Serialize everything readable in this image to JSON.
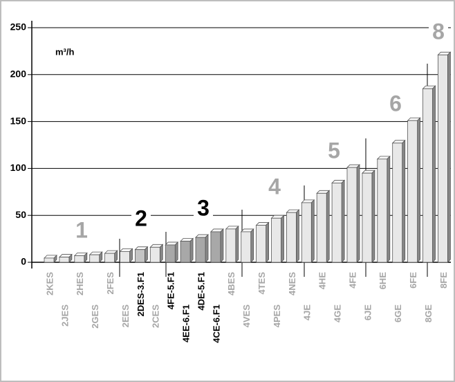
{
  "chart_data": {
    "type": "bar",
    "unit_label": "m³/h",
    "categories": [
      "2KES",
      "2JES",
      "2HES",
      "2GES",
      "2FES",
      "2EES",
      "2DES-3.F1",
      "2CES",
      "4FE-5.F1",
      "4EE-6.F1",
      "4DE-5.F1",
      "4CE-6.F1",
      "4BES",
      "4VES",
      "4TES",
      "4PES",
      "4NES",
      "4JE",
      "4HE",
      "4GE",
      "4FE",
      "6JE",
      "6HE",
      "6GE",
      "6FE",
      "8GE",
      "8FE"
    ],
    "values": [
      4.5,
      5.5,
      7,
      8,
      9.5,
      11.5,
      13.5,
      16,
      18.5,
      22.5,
      26.5,
      32.5,
      35.5,
      32.5,
      39.5,
      47,
      53,
      63.5,
      73.5,
      84.5,
      101,
      95,
      110,
      127,
      151,
      185,
      221
    ],
    "colors": [
      "#e8e8e8",
      "#e8e8e8",
      "#e8e8e8",
      "#e8e8e8",
      "#e8e8e8",
      "#e8e8e8",
      "#c4c4c4",
      "#e8e8e8",
      "#a8a8a8",
      "#a8a8a8",
      "#a8a8a8",
      "#a8a8a8",
      "#e8e8e8",
      "#e8e8e8",
      "#e8e8e8",
      "#e8e8e8",
      "#e8e8e8",
      "#e8e8e8",
      "#e8e8e8",
      "#e8e8e8",
      "#e8e8e8",
      "#e8e8e8",
      "#e8e8e8",
      "#e8e8e8",
      "#e8e8e8",
      "#e8e8e8",
      "#e8e8e8"
    ],
    "label_colors": [
      "#a6a6a6",
      "#a6a6a6",
      "#a6a6a6",
      "#a6a6a6",
      "#a6a6a6",
      "#a6a6a6",
      "#000000",
      "#a6a6a6",
      "#000000",
      "#000000",
      "#000000",
      "#000000",
      "#a6a6a6",
      "#a6a6a6",
      "#a6a6a6",
      "#a6a6a6",
      "#a6a6a6",
      "#a6a6a6",
      "#a6a6a6",
      "#a6a6a6",
      "#a6a6a6",
      "#a6a6a6",
      "#a6a6a6",
      "#a6a6a6",
      "#a6a6a6",
      "#a6a6a6",
      "#a6a6a6"
    ],
    "groups": [
      {
        "text": "1",
        "color": "#a6a6a6"
      },
      {
        "text": "2",
        "color": "#000000"
      },
      {
        "text": "3",
        "color": "#000000"
      },
      {
        "text": "4",
        "color": "#a6a6a6"
      },
      {
        "text": "5",
        "color": "#a6a6a6"
      },
      {
        "text": "6",
        "color": "#a6a6a6"
      },
      {
        "text": "8",
        "color": "#a6a6a6"
      }
    ],
    "ylim": [
      0,
      250
    ],
    "yticks": [
      0,
      50,
      100,
      150,
      200,
      250
    ],
    "grid": true
  }
}
